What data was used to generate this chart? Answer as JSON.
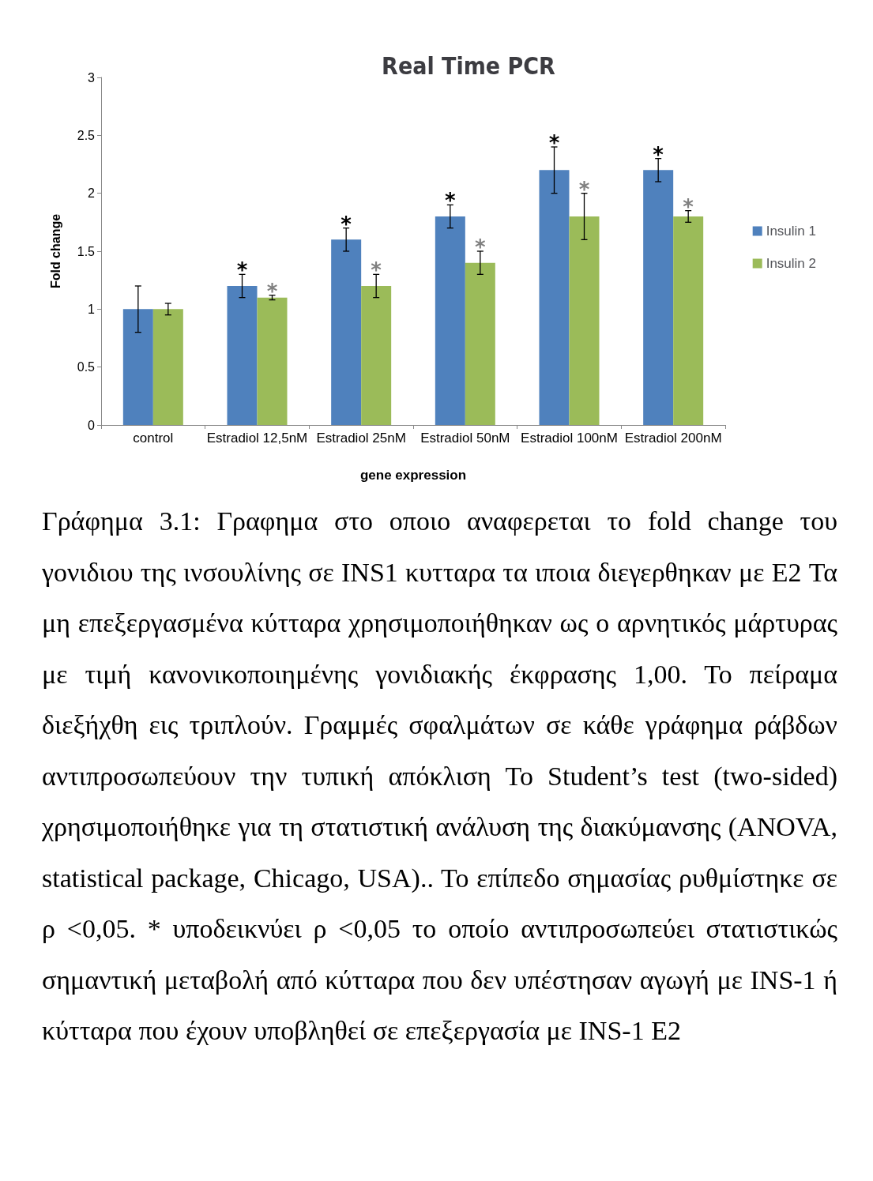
{
  "chart_data": {
    "type": "bar",
    "title": "Real Time PCR",
    "xlabel": "gene expression",
    "ylabel": "Fold change",
    "categories": [
      "control",
      "Estradiol 12,5nM",
      "Estradiol 25nM",
      "Estradiol 50nM",
      "Estradiol 100nM",
      "Estradiol 200nM"
    ],
    "series": [
      {
        "name": "Insulin 1",
        "color": "#4f81bd",
        "values": [
          1,
          1.2,
          1.6,
          1.8,
          2.2,
          2.2
        ],
        "errors": [
          0.2,
          0.1,
          0.1,
          0.1,
          0.2,
          0.1
        ],
        "value_labels": [
          null,
          "*",
          "*",
          "*",
          "*",
          "*"
        ]
      },
      {
        "name": "Insulin 2",
        "color": "#9bbb59",
        "values": [
          1,
          1.1,
          1.2,
          1.4,
          1.8,
          1.8
        ],
        "errors": [
          0.05,
          0.02,
          0.1,
          0.1,
          0.2,
          0.05
        ],
        "value_labels": [
          null,
          "*",
          "*",
          "*",
          "*",
          "*"
        ]
      }
    ],
    "ylim": [
      0,
      3
    ],
    "yticks": [
      0,
      0.5,
      1,
      1.5,
      2,
      2.5,
      3
    ],
    "legend": "right",
    "annotations": [
      "Γράφημα 3.1: Γραφημα στο οποιο αναφερεται το fold change του γονιδιου της ινσουλίνης σε INS1 κυτταρα τα ιποια διεγερθηκαν με E2 Τα μη επεξεργασμένα κύτταρα χρησιμοποιήθηκαν ως ο αρνητικός μάρτυρας με τιμή κανονικοποιημένης γονιδιακής έκφρασης 1,00. Το πείραμα διεξήχθη εις τριπλούν. Γραμμές σφαλμάτων σε κάθε γράφημα ράβδων αντιπροσωπεύουν την τυπική απόκλιση Το Student’s test (two-sided) χρησιμοποιήθηκε για τη στατιστική ανάλυση της διακύμανσης (ANOVA, statistical package, Chicago, USA).. Το επίπεδο σημασίας ρυθμίστηκε σε ρ <0,05. * υποδεικνύει ρ <0,05 το οποίο αντιπροσωπεύει στατιστικώς σημαντική μεταβολή από κύτταρα που δεν υπέστησαν αγωγή με INS-1 ή κύτταρα που έχουν υποβληθεί σε επεξεργασία με INS-1 E2"
    ]
  }
}
